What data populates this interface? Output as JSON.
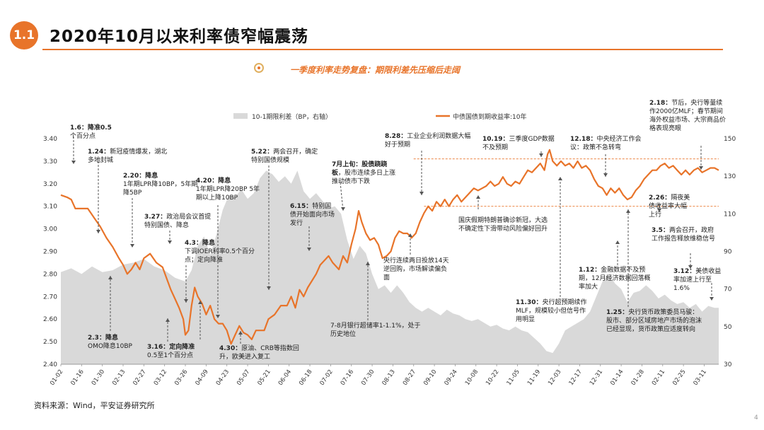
{
  "header": {
    "number": "1.1",
    "title": "2020年10月以来利率债窄幅震荡"
  },
  "subtitle": "一季度利率走势复盘：期限利差先压缩后走阔",
  "source": "资料来源：Wind，平安证券研究所",
  "page_number": "4",
  "colors": {
    "accent": "#e8742a",
    "area": "#d9d9d9",
    "text": "#222222"
  },
  "chart_data": {
    "type": "line",
    "legend": {
      "position": "top",
      "entries": [
        "10-1期限利差（BP，右轴）",
        "中债国债到期收益率:10年"
      ]
    },
    "x_tick_labels": [
      "01-02",
      "01-16",
      "01-30",
      "02-13",
      "02-27",
      "03-12",
      "03-26",
      "04-09",
      "04-23",
      "05-07",
      "05-21",
      "06-04",
      "06-18",
      "07-02",
      "07-16",
      "07-30",
      "08-13",
      "08-27",
      "09-10",
      "09-24",
      "10-08",
      "10-22",
      "11-05",
      "11-19",
      "12-03",
      "12-17",
      "12-31",
      "01-14",
      "01-28",
      "02-11",
      "02-25",
      "03-11"
    ],
    "y_left": {
      "range": [
        2.4,
        3.4
      ],
      "ticks": [
        "2.40",
        "2.50",
        "2.60",
        "2.70",
        "2.80",
        "2.90",
        "3.00",
        "3.10",
        "3.20",
        "3.30",
        "3.40"
      ]
    },
    "y_right": {
      "range": [
        30,
        150
      ],
      "ticks": [
        "30",
        "50",
        "70",
        "90",
        "110",
        "130",
        "150"
      ]
    },
    "x_index_range": [
      0,
      31.7
    ],
    "series": [
      {
        "name": "中债国债到期收益率:10年",
        "axis": "left",
        "color": "#e8742a",
        "points": [
          [
            0,
            3.15
          ],
          [
            0.3,
            3.14
          ],
          [
            0.5,
            3.13
          ],
          [
            0.7,
            3.09
          ],
          [
            1.0,
            3.09
          ],
          [
            1.3,
            3.09
          ],
          [
            1.6,
            3.05
          ],
          [
            1.9,
            3.01
          ],
          [
            2.2,
            2.96
          ],
          [
            2.5,
            2.92
          ],
          [
            2.8,
            2.87
          ],
          [
            3.0,
            2.84
          ],
          [
            3.2,
            2.8
          ],
          [
            3.4,
            2.82
          ],
          [
            3.6,
            2.85
          ],
          [
            3.8,
            2.82
          ],
          [
            4.0,
            2.87
          ],
          [
            4.3,
            2.89
          ],
          [
            4.6,
            2.85
          ],
          [
            4.9,
            2.83
          ],
          [
            5.1,
            2.78
          ],
          [
            5.3,
            2.73
          ],
          [
            5.5,
            2.69
          ],
          [
            5.7,
            2.65
          ],
          [
            5.9,
            2.6
          ],
          [
            6.0,
            2.53
          ],
          [
            6.15,
            2.55
          ],
          [
            6.3,
            2.66
          ],
          [
            6.45,
            2.74
          ],
          [
            6.6,
            2.7
          ],
          [
            6.8,
            2.67
          ],
          [
            7.0,
            2.62
          ],
          [
            7.2,
            2.66
          ],
          [
            7.4,
            2.6
          ],
          [
            7.6,
            2.58
          ],
          [
            7.8,
            2.58
          ],
          [
            8.0,
            2.55
          ],
          [
            8.2,
            2.49
          ],
          [
            8.4,
            2.53
          ],
          [
            8.6,
            2.57
          ],
          [
            8.8,
            2.54
          ],
          [
            9.0,
            2.53
          ],
          [
            9.2,
            2.51
          ],
          [
            9.4,
            2.55
          ],
          [
            9.6,
            2.55
          ],
          [
            9.8,
            2.55
          ],
          [
            10.0,
            2.6
          ],
          [
            10.3,
            2.62
          ],
          [
            10.6,
            2.66
          ],
          [
            10.9,
            2.66
          ],
          [
            11.1,
            2.7
          ],
          [
            11.3,
            2.65
          ],
          [
            11.5,
            2.73
          ],
          [
            11.7,
            2.7
          ],
          [
            11.9,
            2.74
          ],
          [
            12.1,
            2.77
          ],
          [
            12.3,
            2.8
          ],
          [
            12.5,
            2.84
          ],
          [
            12.7,
            2.86
          ],
          [
            12.9,
            2.88
          ],
          [
            13.1,
            2.85
          ],
          [
            13.4,
            2.82
          ],
          [
            13.6,
            2.88
          ],
          [
            13.8,
            2.85
          ],
          [
            14.0,
            2.93
          ],
          [
            14.2,
            3.0
          ],
          [
            14.35,
            3.08
          ],
          [
            14.5,
            3.03
          ],
          [
            14.7,
            2.98
          ],
          [
            14.9,
            2.95
          ],
          [
            15.1,
            2.96
          ],
          [
            15.3,
            2.93
          ],
          [
            15.5,
            2.87
          ],
          [
            15.7,
            2.88
          ],
          [
            15.9,
            2.9
          ],
          [
            16.1,
            2.96
          ],
          [
            16.3,
            2.99
          ],
          [
            16.5,
            2.98
          ],
          [
            16.7,
            2.98
          ],
          [
            16.9,
            2.96
          ],
          [
            17.1,
            2.98
          ],
          [
            17.3,
            3.03
          ],
          [
            17.5,
            3.07
          ],
          [
            17.7,
            3.1
          ],
          [
            17.9,
            3.08
          ],
          [
            18.1,
            3.12
          ],
          [
            18.3,
            3.1
          ],
          [
            18.5,
            3.13
          ],
          [
            18.7,
            3.1
          ],
          [
            18.9,
            3.13
          ],
          [
            19.1,
            3.15
          ],
          [
            19.3,
            3.12
          ],
          [
            19.5,
            3.14
          ],
          [
            19.7,
            3.16
          ],
          [
            19.9,
            3.18
          ],
          [
            20.1,
            3.17
          ],
          [
            20.3,
            3.18
          ],
          [
            20.5,
            3.19
          ],
          [
            20.7,
            3.21
          ],
          [
            20.9,
            3.19
          ],
          [
            21.1,
            3.2
          ],
          [
            21.3,
            3.23
          ],
          [
            21.5,
            3.2
          ],
          [
            21.7,
            3.19
          ],
          [
            21.9,
            3.21
          ],
          [
            22.1,
            3.2
          ],
          [
            22.3,
            3.23
          ],
          [
            22.5,
            3.26
          ],
          [
            22.7,
            3.25
          ],
          [
            22.9,
            3.27
          ],
          [
            23.1,
            3.29
          ],
          [
            23.3,
            3.26
          ],
          [
            23.45,
            3.33
          ],
          [
            23.55,
            3.35
          ],
          [
            23.7,
            3.3
          ],
          [
            23.9,
            3.28
          ],
          [
            24.1,
            3.3
          ],
          [
            24.3,
            3.28
          ],
          [
            24.5,
            3.29
          ],
          [
            24.7,
            3.27
          ],
          [
            24.9,
            3.3
          ],
          [
            25.1,
            3.27
          ],
          [
            25.3,
            3.28
          ],
          [
            25.5,
            3.26
          ],
          [
            25.7,
            3.22
          ],
          [
            25.9,
            3.19
          ],
          [
            26.1,
            3.18
          ],
          [
            26.3,
            3.15
          ],
          [
            26.5,
            3.18
          ],
          [
            26.7,
            3.16
          ],
          [
            26.9,
            3.18
          ],
          [
            27.1,
            3.15
          ],
          [
            27.3,
            3.13
          ],
          [
            27.5,
            3.14
          ],
          [
            27.7,
            3.17
          ],
          [
            27.9,
            3.19
          ],
          [
            28.1,
            3.22
          ],
          [
            28.3,
            3.24
          ],
          [
            28.5,
            3.26
          ],
          [
            28.7,
            3.26
          ],
          [
            28.9,
            3.28
          ],
          [
            29.1,
            3.29
          ],
          [
            29.3,
            3.27
          ],
          [
            29.5,
            3.28
          ],
          [
            29.7,
            3.26
          ],
          [
            29.9,
            3.24
          ],
          [
            30.1,
            3.26
          ],
          [
            30.3,
            3.24
          ],
          [
            30.5,
            3.26
          ],
          [
            30.7,
            3.27
          ],
          [
            30.9,
            3.25
          ],
          [
            31.1,
            3.26
          ],
          [
            31.3,
            3.27
          ],
          [
            31.5,
            3.27
          ],
          [
            31.7,
            3.26
          ]
        ]
      },
      {
        "name": "10-1期限利差（BP，右轴）",
        "axis": "right",
        "color": "#d9d9d9",
        "points": [
          [
            0,
            79
          ],
          [
            0.5,
            81
          ],
          [
            1.0,
            78
          ],
          [
            1.5,
            82
          ],
          [
            2.0,
            79
          ],
          [
            2.5,
            80
          ],
          [
            3.0,
            83
          ],
          [
            3.5,
            84
          ],
          [
            4.0,
            86
          ],
          [
            4.5,
            82
          ],
          [
            5.0,
            80
          ],
          [
            5.5,
            76
          ],
          [
            6.0,
            74
          ],
          [
            6.3,
            80
          ],
          [
            6.6,
            93
          ],
          [
            6.9,
            98
          ],
          [
            7.2,
            88
          ],
          [
            7.5,
            99
          ],
          [
            7.8,
            112
          ],
          [
            8.1,
            120
          ],
          [
            8.4,
            119
          ],
          [
            8.7,
            123
          ],
          [
            9.0,
            118
          ],
          [
            9.3,
            121
          ],
          [
            9.6,
            129
          ],
          [
            9.9,
            133
          ],
          [
            10.2,
            131
          ],
          [
            10.5,
            127
          ],
          [
            10.8,
            130
          ],
          [
            11.1,
            126
          ],
          [
            11.4,
            133
          ],
          [
            11.7,
            122
          ],
          [
            12.0,
            118
          ],
          [
            12.3,
            121
          ],
          [
            12.6,
            117
          ],
          [
            12.9,
            113
          ],
          [
            13.2,
            114
          ],
          [
            13.5,
            110
          ],
          [
            13.8,
            96
          ],
          [
            14.1,
            86
          ],
          [
            14.4,
            93
          ],
          [
            14.7,
            89
          ],
          [
            15.0,
            78
          ],
          [
            15.3,
            70
          ],
          [
            15.6,
            72
          ],
          [
            15.9,
            68
          ],
          [
            16.2,
            72
          ],
          [
            16.5,
            68
          ],
          [
            16.8,
            63
          ],
          [
            17.1,
            60
          ],
          [
            17.4,
            58
          ],
          [
            17.7,
            60
          ],
          [
            18.0,
            58
          ],
          [
            18.3,
            56
          ],
          [
            18.6,
            59
          ],
          [
            18.9,
            57
          ],
          [
            19.2,
            56
          ],
          [
            19.5,
            54
          ],
          [
            19.8,
            53
          ],
          [
            20.1,
            54
          ],
          [
            20.4,
            52
          ],
          [
            20.7,
            50
          ],
          [
            21.0,
            51
          ],
          [
            21.3,
            49
          ],
          [
            21.6,
            48
          ],
          [
            21.9,
            50
          ],
          [
            22.2,
            48
          ],
          [
            22.5,
            47
          ],
          [
            22.8,
            44
          ],
          [
            23.1,
            41
          ],
          [
            23.4,
            37
          ],
          [
            23.7,
            36
          ],
          [
            24.0,
            41
          ],
          [
            24.3,
            48
          ],
          [
            24.6,
            50
          ],
          [
            24.9,
            52
          ],
          [
            25.2,
            54
          ],
          [
            25.5,
            58
          ],
          [
            25.8,
            66
          ],
          [
            26.1,
            74
          ],
          [
            26.4,
            78
          ],
          [
            26.7,
            73
          ],
          [
            27.0,
            70
          ],
          [
            27.3,
            63
          ],
          [
            27.6,
            68
          ],
          [
            27.9,
            69
          ],
          [
            28.2,
            72
          ],
          [
            28.5,
            69
          ],
          [
            28.8,
            65
          ],
          [
            29.1,
            67
          ],
          [
            29.4,
            64
          ],
          [
            29.7,
            62
          ],
          [
            30.0,
            63
          ],
          [
            30.3,
            60
          ],
          [
            30.6,
            62
          ],
          [
            30.9,
            58
          ],
          [
            31.2,
            61
          ],
          [
            31.5,
            60
          ],
          [
            31.7,
            60
          ]
        ]
      }
    ],
    "reference_lines": [
      {
        "axis": "left",
        "value": 3.31,
        "x_start": 17.0
      },
      {
        "axis": "left",
        "value": 3.1,
        "x_start": 17.5
      }
    ]
  },
  "annotations": [
    {
      "date": "1.6：",
      "label": "降准0.5",
      "text": "个百分点"
    },
    {
      "date": "1.24：",
      "text": "新冠疫情爆发，湖北多地封城"
    },
    {
      "date": "2.20：",
      "label": "降息",
      "text": "1年期LPR降10BP，5年期降5BP"
    },
    {
      "date": "3.27：",
      "text": "政治局会议首提特别国债、降息"
    },
    {
      "date": "4.3：",
      "label": "降息",
      "text": "下调IOER利率0.5个百分点；定向降准"
    },
    {
      "date": "4.20：",
      "label": "降息",
      "text": "1年期LPR降20BP 5年期以上降10BP"
    },
    {
      "date": "5.22：",
      "text": "两会召开，确定特别国债规模"
    },
    {
      "date": "6.15：",
      "text": "特别国债开始面向市场发行"
    },
    {
      "date": "7月上旬：",
      "label": "股债跷跷板",
      "text": "，股市连续多日上涨推动债市下跌"
    },
    {
      "date": "8.28：",
      "text": "工业企业利润数据大幅好于预期"
    },
    {
      "date": "10.19：",
      "text": "三季度GDP数据不及预期"
    },
    {
      "date": "12.18：",
      "text": "中央经济工作会议：政策不急转弯"
    },
    {
      "date": "2.18：",
      "text": "节后，央行等量续作2000亿MLF；春节期间海外权益市场、大宗商品价格表现亮眼"
    },
    {
      "date": "2.26：",
      "text": "隔夜美债收益率大幅上行"
    },
    {
      "date": "3.5：",
      "text": "两会召开，政府工作报告释放维稳信号"
    },
    {
      "date": "3.12：",
      "text": "美债收益率加速上行至1.6%"
    },
    {
      "date": "",
      "text": "国庆假期特朗普确诊新冠，大选不确定性下滑带动风险偏好回升"
    },
    {
      "date": "",
      "text": "央行连续两日投放14天逆回购，市场解读偏负面"
    },
    {
      "date": "",
      "text": "7-8月银行超储率1-1.1%，处于历史地位"
    },
    {
      "date": "11.30：",
      "text": "央行超预期续作MLF，规模较小但信号作用明显"
    },
    {
      "date": "1.12：",
      "text": "金融数据不及预期，12月经济数据回落概率加大"
    },
    {
      "date": "1.25：",
      "text": "央行货币政策委员马骏：股市、部分区域房地产市场的泡沫已经显现，货币政策应适度转向"
    },
    {
      "date": "2.3：",
      "label": "降息",
      "text": "OMO降息10BP"
    },
    {
      "date": "3.16：",
      "label": "定向降准",
      "text": "0.5至1个百分点"
    },
    {
      "date": "4.30：",
      "text": "原油、CRB等指数回升，欧美进入复工"
    }
  ]
}
